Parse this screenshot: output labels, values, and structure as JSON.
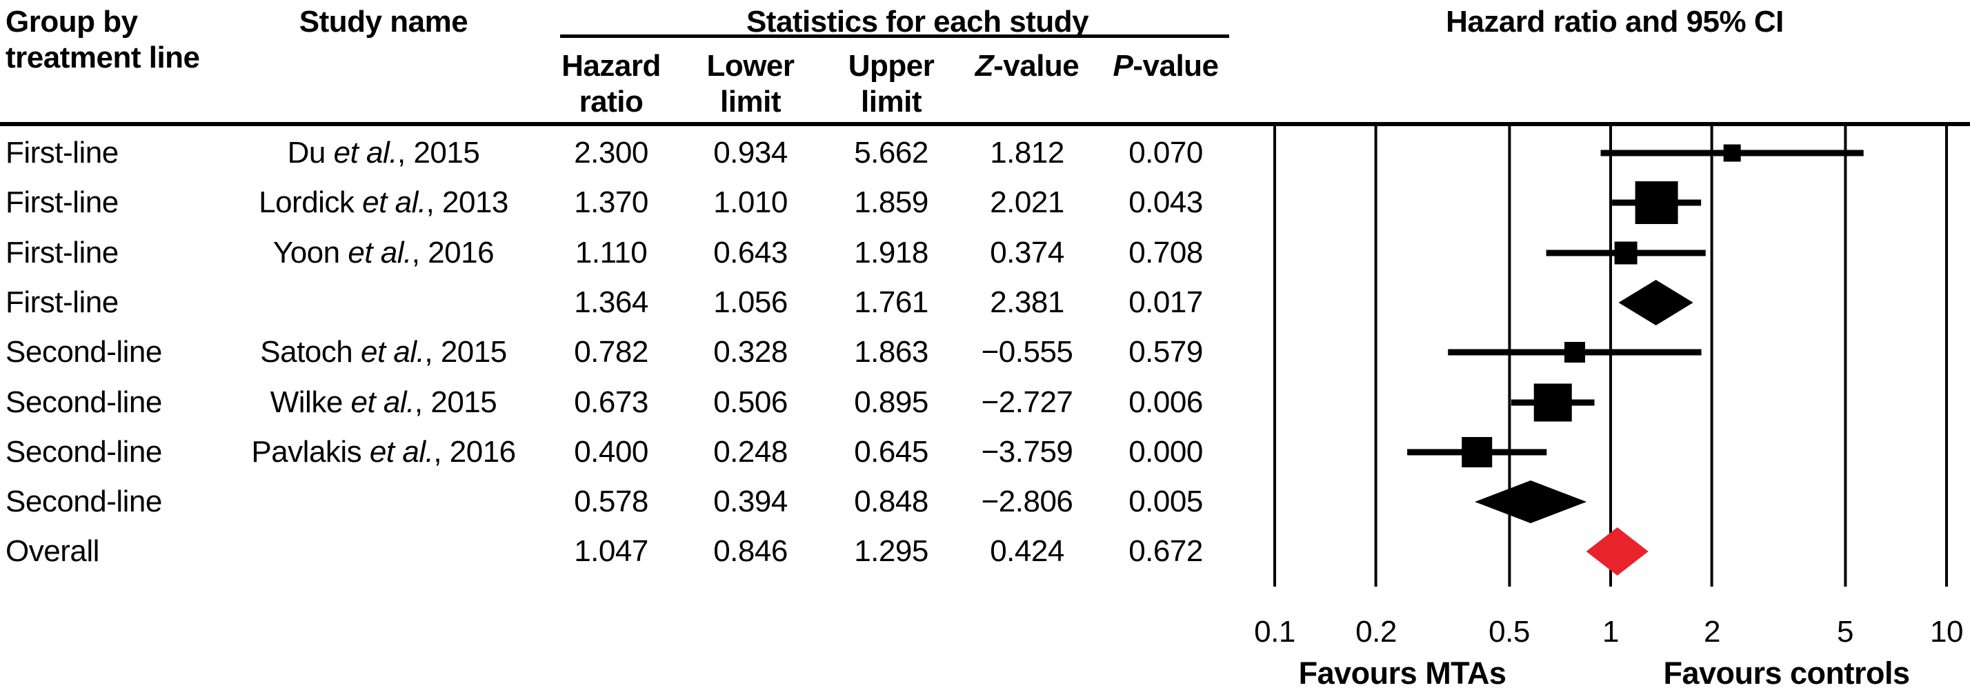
{
  "headers": {
    "group_line1": "Group by",
    "group_line2": "treatment line",
    "study": "Study name",
    "stats": "Statistics for each study",
    "plot": "Hazard ratio and 95% CI",
    "stat_cols": [
      {
        "line1": "Hazard",
        "line2": "ratio",
        "italic": ""
      },
      {
        "line1": "Lower",
        "line2": "limit",
        "italic": ""
      },
      {
        "line1": "Upper",
        "line2": "limit",
        "italic": ""
      },
      {
        "line1": "-value",
        "line2": "",
        "italic": "Z"
      },
      {
        "line1": "-value",
        "line2": "",
        "italic": "P"
      }
    ]
  },
  "chart_data": {
    "type": "scatter",
    "variant": "forest-plot",
    "title": "Hazard ratio and 95% CI",
    "x_scale": "log10",
    "x_ticks": [
      "0.1",
      "0.2",
      "0.5",
      "1",
      "2",
      "5",
      "10"
    ],
    "grid": true,
    "favours_left": "Favours MTAs",
    "favours_right": "Favours controls",
    "marker_color": "#000000",
    "overall_color": "#e8232b",
    "rows": [
      {
        "group": "First-line",
        "study": "Du",
        "etal": "et al.",
        "year": "2015",
        "hr": 2.3,
        "lower": 0.934,
        "upper": 5.662,
        "z": 1.812,
        "p": 0.07,
        "marker": "square",
        "msize": 25,
        "color": "#000000"
      },
      {
        "group": "First-line",
        "study": "Lordick",
        "etal": "et al.",
        "year": "2013",
        "hr": 1.37,
        "lower": 1.01,
        "upper": 1.859,
        "z": 2.021,
        "p": 0.043,
        "marker": "square",
        "msize": 62,
        "color": "#000000"
      },
      {
        "group": "First-line",
        "study": "Yoon",
        "etal": "et al.",
        "year": "2016",
        "hr": 1.11,
        "lower": 0.643,
        "upper": 1.918,
        "z": 0.374,
        "p": 0.708,
        "marker": "square",
        "msize": 33,
        "color": "#000000"
      },
      {
        "group": "First-line",
        "study": "",
        "etal": "",
        "year": "",
        "hr": 1.364,
        "lower": 1.056,
        "upper": 1.761,
        "z": 2.381,
        "p": 0.017,
        "marker": "diamond",
        "msize": 66,
        "color": "#000000"
      },
      {
        "group": "Second-line",
        "study": "Satoch",
        "etal": "et al.",
        "year": "2015",
        "hr": 0.782,
        "lower": 0.328,
        "upper": 1.863,
        "z": -0.555,
        "p": 0.579,
        "marker": "square",
        "msize": 30,
        "color": "#000000"
      },
      {
        "group": "Second-line",
        "study": "Wilke",
        "etal": "et al.",
        "year": "2015",
        "hr": 0.673,
        "lower": 0.506,
        "upper": 0.895,
        "z": -2.727,
        "p": 0.006,
        "marker": "square",
        "msize": 55,
        "color": "#000000"
      },
      {
        "group": "Second-line",
        "study": "Pavlakis",
        "etal": "et al.",
        "year": "2016",
        "hr": 0.4,
        "lower": 0.248,
        "upper": 0.645,
        "z": -3.759,
        "p": 0.0,
        "marker": "square",
        "msize": 44,
        "color": "#000000"
      },
      {
        "group": "Second-line",
        "study": "",
        "etal": "",
        "year": "",
        "hr": 0.578,
        "lower": 0.394,
        "upper": 0.848,
        "z": -2.806,
        "p": 0.005,
        "marker": "diamond",
        "msize": 62,
        "color": "#000000"
      },
      {
        "group": "Overall",
        "study": "",
        "etal": "",
        "year": "",
        "hr": 1.047,
        "lower": 0.846,
        "upper": 1.295,
        "z": 0.424,
        "p": 0.672,
        "marker": "diamond",
        "msize": 70,
        "color": "#e8232b"
      }
    ]
  }
}
